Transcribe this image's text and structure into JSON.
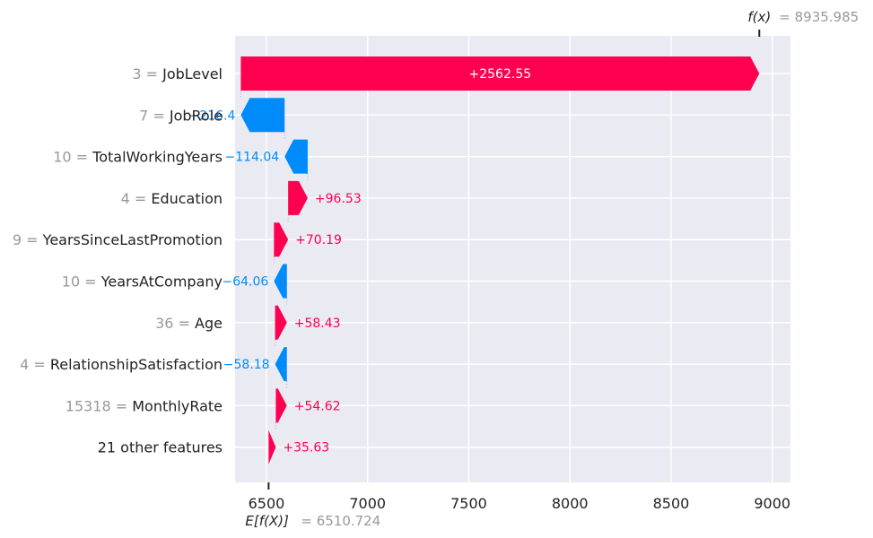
{
  "chart_data": {
    "type": "waterfall",
    "base_value": 6510.724,
    "final_value": 8935.985,
    "xlim": [
      6345,
      9090
    ],
    "xticks": [
      6500,
      7000,
      7500,
      8000,
      8500,
      9000
    ],
    "rows": [
      {
        "value_label": "3",
        "feature": "JobLevel",
        "contribution": 2562.55,
        "label": "+2562.55"
      },
      {
        "value_label": "7",
        "feature": "JobRole",
        "contribution": -216.4,
        "label": "−216.4"
      },
      {
        "value_label": "10",
        "feature": "TotalWorkingYears",
        "contribution": -114.04,
        "label": "−114.04"
      },
      {
        "value_label": "4",
        "feature": "Education",
        "contribution": 96.53,
        "label": "+96.53"
      },
      {
        "value_label": "9",
        "feature": "YearsSinceLastPromotion",
        "contribution": 70.19,
        "label": "+70.19"
      },
      {
        "value_label": "10",
        "feature": "YearsAtCompany",
        "contribution": -64.06,
        "label": "−64.06"
      },
      {
        "value_label": "36",
        "feature": "Age",
        "contribution": 58.43,
        "label": "+58.43"
      },
      {
        "value_label": "4",
        "feature": "RelationshipSatisfaction",
        "contribution": -58.18,
        "label": "−58.18"
      },
      {
        "value_label": "15318",
        "feature": "MonthlyRate",
        "contribution": 54.62,
        "label": "+54.62"
      },
      {
        "value_label": "",
        "feature": "21 other features",
        "contribution": 35.63,
        "label": "+35.63"
      }
    ],
    "fx_label": "f(x)",
    "fx_value_text": "= 8935.985",
    "ex_label": "E[f(X)]",
    "ex_value_text": "= 6510.724",
    "colors": {
      "positive": "#ff0051",
      "negative": "#008bfb",
      "plot_bg": "#eaeaf2",
      "grid": "#ffffff",
      "muted": "#999999"
    }
  }
}
